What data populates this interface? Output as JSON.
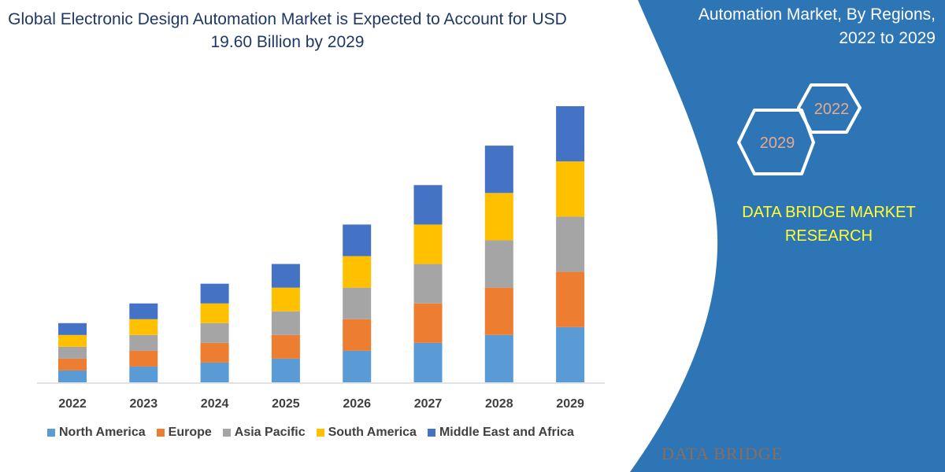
{
  "title": "Global Electronic Design Automation Market is Expected to Account for USD 19.60 Billion by 2029",
  "side_panel": {
    "heading_line1": "Automation Market, By Regions,",
    "heading_line2": "2022 to 2029",
    "hex_start": "2022",
    "hex_end": "2029",
    "brand": "DATA BRIDGE MARKET RESEARCH",
    "logo_text": "DATA BRIDGE",
    "panel_color": "#2e75b6",
    "brand_color": "#ffff33",
    "hex_text_color": "#e8a98a"
  },
  "chart_data": {
    "type": "bar",
    "stacked": true,
    "categories": [
      "2022",
      "2023",
      "2024",
      "2025",
      "2026",
      "2027",
      "2028",
      "2029"
    ],
    "series": [
      {
        "name": "North America",
        "color": "#5b9bd5",
        "values": [
          3,
          4,
          5,
          6,
          8,
          10,
          12,
          14
        ]
      },
      {
        "name": "Europe",
        "color": "#ed7d31",
        "values": [
          3,
          4,
          5,
          6,
          8,
          10,
          12,
          14
        ]
      },
      {
        "name": "Asia Pacific",
        "color": "#a5a5a5",
        "values": [
          3,
          4,
          5,
          6,
          8,
          10,
          12,
          14
        ]
      },
      {
        "name": "South America",
        "color": "#ffc000",
        "values": [
          3,
          4,
          5,
          6,
          8,
          10,
          12,
          14
        ]
      },
      {
        "name": "Middle East and Africa",
        "color": "#4472c4",
        "values": [
          3,
          4,
          5,
          6,
          8,
          10,
          12,
          14
        ]
      }
    ],
    "ylim": [
      0,
      70
    ],
    "y_axis_visible": false,
    "grid": false,
    "legend_position": "bottom"
  }
}
